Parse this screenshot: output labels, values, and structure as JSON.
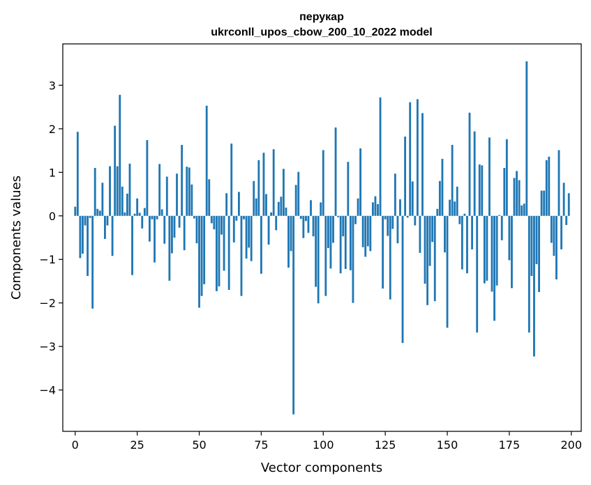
{
  "chart_data": {
    "type": "bar",
    "title_line1": "перукар",
    "title_line2": "ukrconll_upos_cbow_200_10_2022 model",
    "xlabel": "Vector components",
    "ylabel": "Components values",
    "x_ticks": [
      0,
      25,
      50,
      75,
      100,
      125,
      150,
      175,
      200
    ],
    "y_ticks": [
      -4,
      -3,
      -2,
      -1,
      0,
      1,
      2,
      3
    ],
    "y_tick_labels": [
      "−4",
      "−3",
      "−2",
      "−1",
      "0",
      "1",
      "2",
      "3"
    ],
    "xlim": [
      -5,
      204
    ],
    "ylim": [
      -4.95,
      3.95
    ],
    "grid": false,
    "bar_color": "#1f77b4",
    "values": [
      0.21,
      1.93,
      -0.97,
      -0.87,
      -0.22,
      -1.38,
      -0.05,
      -2.13,
      1.1,
      0.16,
      0.12,
      0.76,
      -0.53,
      -0.22,
      1.14,
      -0.92,
      2.07,
      1.14,
      2.78,
      0.67,
      0.08,
      0.51,
      1.2,
      -1.36,
      0.05,
      0.4,
      0.07,
      -0.29,
      0.18,
      1.74,
      -0.59,
      -0.08,
      -1.07,
      -0.08,
      1.19,
      0.15,
      -0.64,
      0.9,
      -1.49,
      -0.86,
      -0.5,
      0.97,
      -0.27,
      1.63,
      -0.79,
      1.13,
      1.11,
      0.72,
      -0.06,
      -0.63,
      -2.11,
      -1.84,
      -1.57,
      2.53,
      0.84,
      -0.17,
      -0.31,
      -1.73,
      -1.62,
      -0.43,
      -1.26,
      0.52,
      -1.7,
      1.66,
      -0.61,
      -0.11,
      0.55,
      -1.84,
      -0.08,
      -0.98,
      -0.73,
      -1.04,
      0.8,
      0.4,
      1.28,
      -1.33,
      1.45,
      0.5,
      -0.66,
      0.08,
      1.53,
      -0.33,
      0.32,
      0.44,
      1.08,
      0.19,
      -1.19,
      -0.81,
      -4.56,
      0.71,
      1.01,
      -0.07,
      -0.51,
      -0.12,
      -0.39,
      0.36,
      -0.47,
      -1.63,
      -2.01,
      0.31,
      1.51,
      -1.84,
      -0.74,
      -1.21,
      -0.62,
      2.03,
      -0.03,
      -1.32,
      -0.47,
      -1.22,
      1.24,
      -1.25,
      -2.0,
      -0.19,
      0.4,
      1.55,
      -0.72,
      -0.94,
      -0.7,
      -0.81,
      0.31,
      0.45,
      0.27,
      2.72,
      -1.67,
      -0.08,
      -0.46,
      -1.92,
      -0.3,
      0.97,
      -0.63,
      0.38,
      -2.92,
      1.82,
      -0.04,
      2.61,
      0.79,
      -0.22,
      2.68,
      -0.85,
      2.36,
      -1.56,
      -2.05,
      -1.15,
      -0.6,
      -1.96,
      0.16,
      0.8,
      1.31,
      -0.84,
      -2.57,
      0.37,
      1.63,
      0.33,
      0.67,
      -0.19,
      -1.23,
      0.05,
      -1.32,
      2.37,
      -0.77,
      1.94,
      -2.68,
      1.18,
      1.16,
      -1.55,
      -1.49,
      1.8,
      -1.74,
      -2.41,
      -1.6,
      0.02,
      -0.56,
      1.1,
      1.76,
      -1.02,
      -1.66,
      0.87,
      1.03,
      0.82,
      0.24,
      0.28,
      3.55,
      -2.68,
      -1.38,
      -3.23,
      -1.11,
      -1.75,
      0.58,
      0.58,
      1.28,
      1.36,
      -0.62,
      -0.92,
      -1.46,
      1.51,
      -0.77,
      0.76,
      -0.21,
      0.52
    ]
  }
}
